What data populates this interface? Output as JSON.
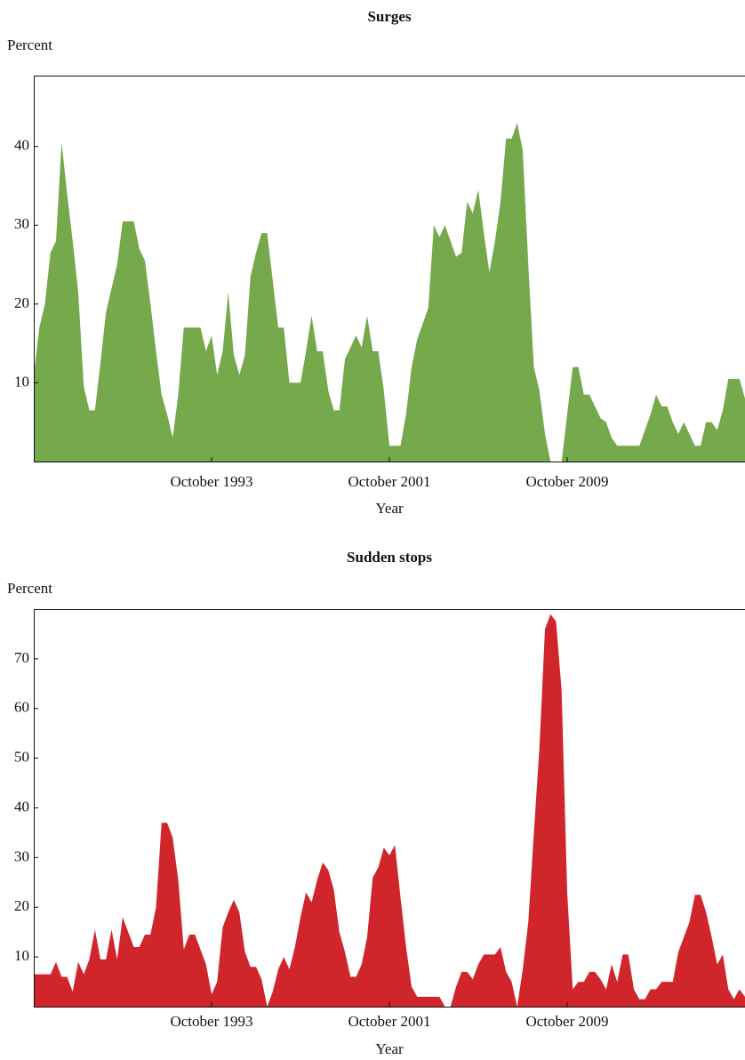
{
  "chart_data": [
    {
      "type": "area",
      "title": "Surges",
      "y_label": "Percent",
      "x_label": "Year",
      "color": "#76a84c",
      "ylim": [
        0,
        49
      ],
      "yticks": [
        10,
        20,
        30,
        40
      ],
      "categories": [
        null,
        null,
        null,
        null,
        null,
        null,
        null,
        null,
        null,
        null,
        null,
        null,
        null,
        null,
        null,
        null,
        null,
        null,
        null,
        null,
        null,
        null,
        null,
        null,
        null,
        null,
        null,
        null,
        null,
        null,
        null,
        null,
        "October 1993",
        null,
        null,
        null,
        null,
        null,
        null,
        null,
        null,
        null,
        null,
        null,
        null,
        null,
        null,
        null,
        null,
        null,
        null,
        null,
        null,
        null,
        null,
        null,
        null,
        null,
        null,
        null,
        null,
        null,
        null,
        null,
        "October 2001",
        null,
        null,
        null,
        null,
        null,
        null,
        null,
        null,
        null,
        null,
        null,
        null,
        null,
        null,
        null,
        null,
        null,
        null,
        null,
        null,
        null,
        null,
        null,
        null,
        null,
        null,
        null,
        null,
        null,
        null,
        null,
        "October 2009",
        null,
        null,
        null,
        null,
        null,
        null,
        null,
        null,
        null,
        null,
        null,
        null,
        null,
        null,
        null,
        null,
        null,
        null,
        null,
        null,
        null,
        null,
        null,
        null,
        null,
        null,
        null,
        null,
        null,
        null,
        null,
        null
      ],
      "values": [
        11,
        17,
        20,
        26.5,
        28,
        40.5,
        34,
        28,
        21.5,
        9.5,
        6.5,
        6.5,
        12.5,
        19,
        22,
        25,
        30.5,
        30.5,
        30.5,
        27,
        25.5,
        20,
        14,
        8.5,
        6,
        3,
        8.5,
        17,
        17,
        17,
        17,
        14,
        16,
        11,
        14,
        21.5,
        13.5,
        11,
        13.5,
        23.5,
        26.5,
        29,
        29,
        23,
        17,
        17,
        10,
        10,
        10,
        14,
        18.5,
        14,
        14,
        9,
        6.5,
        6.5,
        13,
        14.5,
        16,
        14.5,
        18.5,
        14,
        14,
        9,
        2,
        2,
        2,
        6,
        12,
        15.5,
        17.5,
        19.5,
        30,
        28.5,
        30,
        28,
        26,
        26.5,
        33,
        31.5,
        34.5,
        29,
        24,
        28,
        33,
        41,
        41,
        43,
        39.5,
        25,
        12,
        9,
        3.5,
        0,
        0,
        0,
        6,
        12,
        12,
        8.5,
        8.5,
        7,
        5.5,
        5,
        3,
        2,
        2,
        2,
        2,
        2,
        4,
        6,
        8.5,
        7,
        7,
        5,
        3.5,
        5,
        3.5,
        2,
        2,
        5,
        5,
        4,
        6.5,
        10.5,
        10.5,
        10.5,
        8
      ]
    },
    {
      "type": "area",
      "title": "Sudden stops",
      "y_label": "Percent",
      "x_label": "Year",
      "color": "#d0262b",
      "ylim": [
        0,
        80
      ],
      "yticks": [
        10,
        20,
        30,
        40,
        50,
        60,
        70
      ],
      "categories": [
        null,
        null,
        null,
        null,
        null,
        null,
        null,
        null,
        null,
        null,
        null,
        null,
        null,
        null,
        null,
        null,
        null,
        null,
        null,
        null,
        null,
        null,
        null,
        null,
        null,
        null,
        null,
        null,
        null,
        null,
        null,
        null,
        "October 1993",
        null,
        null,
        null,
        null,
        null,
        null,
        null,
        null,
        null,
        null,
        null,
        null,
        null,
        null,
        null,
        null,
        null,
        null,
        null,
        null,
        null,
        null,
        null,
        null,
        null,
        null,
        null,
        null,
        null,
        null,
        null,
        "October 2001",
        null,
        null,
        null,
        null,
        null,
        null,
        null,
        null,
        null,
        null,
        null,
        null,
        null,
        null,
        null,
        null,
        null,
        null,
        null,
        null,
        null,
        null,
        null,
        null,
        null,
        null,
        null,
        null,
        null,
        null,
        null,
        "October 2009",
        null,
        null,
        null,
        null,
        null,
        null,
        null,
        null,
        null,
        null,
        null,
        null,
        null,
        null,
        null,
        null,
        null,
        null,
        null,
        null,
        null,
        null,
        null,
        null,
        null,
        null,
        null,
        null,
        null,
        null,
        null,
        null
      ],
      "values": [
        6.5,
        6.5,
        6.5,
        6.5,
        9,
        6,
        6,
        3,
        9,
        6.5,
        9.5,
        15.5,
        9.5,
        9.5,
        15.5,
        9.5,
        18,
        15,
        12,
        12,
        14.5,
        14.5,
        20,
        37,
        37,
        34,
        25.5,
        11.5,
        14.5,
        14.5,
        11.5,
        8.5,
        2.5,
        5,
        16,
        19,
        21.5,
        19,
        11,
        8,
        8,
        5.5,
        0,
        3,
        7.5,
        10,
        7.5,
        12,
        18,
        23,
        21,
        25.5,
        29,
        27.5,
        23.5,
        15,
        11,
        6,
        6,
        8.5,
        14,
        26,
        28,
        32,
        30.5,
        32.5,
        22,
        12,
        4,
        2,
        2,
        2,
        2,
        2,
        0,
        0,
        4,
        7,
        7,
        5.5,
        8.5,
        10.5,
        10.5,
        10.5,
        12,
        7,
        5,
        0,
        7.5,
        17,
        35,
        52,
        76,
        79,
        77.5,
        63.5,
        23,
        3.5,
        5,
        5,
        7,
        7,
        5.5,
        3.5,
        8.5,
        5,
        10.5,
        10.5,
        3.5,
        1.5,
        1.5,
        3.5,
        3.5,
        5,
        5,
        5,
        11,
        14,
        17,
        22.5,
        22.5,
        19,
        14,
        8.5,
        10.5,
        3.5,
        1.5,
        3.5,
        2
      ]
    }
  ]
}
